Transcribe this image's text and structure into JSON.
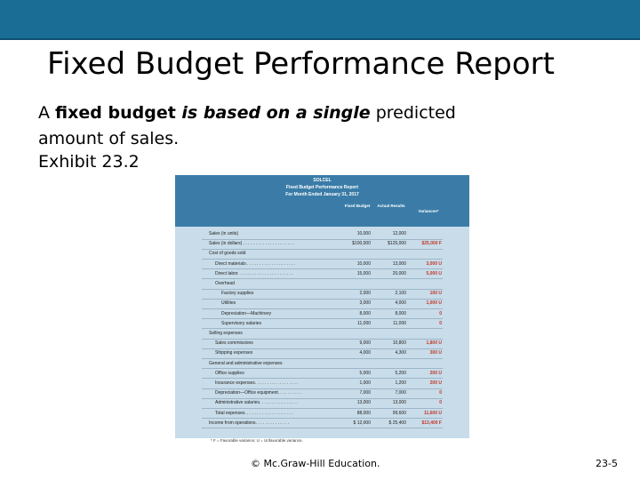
{
  "slide": {
    "title": "Fixed Budget Performance Report",
    "line1_pre": "A ",
    "line1_bold": "fixed budget",
    "line1_italic": " is based on a single",
    "line1_post": " predicted",
    "line2": "amount of sales.",
    "exhibit": "Exhibit 23.2",
    "copyright": "© Mc.Graw-Hill Education.",
    "page_number": "23-5"
  },
  "report": {
    "company": "SOLCEL",
    "title": "Fixed Budget Performance Report",
    "period": "For Month Ended January 31, 2017",
    "col_fixed": "Fixed Budget",
    "col_actual": "Actual Results",
    "col_variances": "Variances*",
    "rows": [
      {
        "label": "Sales (in units)",
        "indent": 0,
        "fixed": "10,000",
        "actual": "12,000",
        "variance": ""
      },
      {
        "label": "Sales (in dollars) . . . . . . . . . . . . . . . . . . . . .",
        "indent": 0,
        "fixed": "$100,000",
        "actual": "$125,000",
        "variance": "$25,000 F"
      },
      {
        "label": "Cost of goods sold",
        "indent": 0,
        "fixed": "",
        "actual": "",
        "variance": ""
      },
      {
        "label": "Direct materials . . . . . . . . . . . . . . . . . . . .",
        "indent": 1,
        "fixed": "10,000",
        "actual": "13,000",
        "variance": "3,000 U"
      },
      {
        "label": "Direct labor. . . . . . . . . . . . . . . . . . . . . . .",
        "indent": 1,
        "fixed": "15,000",
        "actual": "20,000",
        "variance": "5,000 U"
      },
      {
        "label": "Overhead",
        "indent": 1,
        "fixed": "",
        "actual": "",
        "variance": ""
      },
      {
        "label": "Factory supplies",
        "indent": 2,
        "fixed": "2,000",
        "actual": "2,100",
        "variance": "100 U"
      },
      {
        "label": "Utilities",
        "indent": 2,
        "fixed": "3,000",
        "actual": "4,000",
        "variance": "1,000 U"
      },
      {
        "label": "Depreciation—Machinery",
        "indent": 2,
        "fixed": "8,000",
        "actual": "8,000",
        "variance": "0"
      },
      {
        "label": "Supervisory salaries",
        "indent": 2,
        "fixed": "11,000",
        "actual": "11,000",
        "variance": "0"
      },
      {
        "label": "Selling expenses",
        "indent": 0,
        "fixed": "",
        "actual": "",
        "variance": ""
      },
      {
        "label": "Sales commissions",
        "indent": 1,
        "fixed": "9,000",
        "actual": "10,800",
        "variance": "1,800 U"
      },
      {
        "label": "Shipping expenses",
        "indent": 1,
        "fixed": "4,000",
        "actual": "4,300",
        "variance": "300 U"
      },
      {
        "label": "General and administrative expenses",
        "indent": 0,
        "fixed": "",
        "actual": "",
        "variance": ""
      },
      {
        "label": "Office supplies",
        "indent": 1,
        "fixed": "5,000",
        "actual": "5,200",
        "variance": "200 U"
      },
      {
        "label": "Insurance expenses. . . . . . . . . . . . . . . . . .",
        "indent": 1,
        "fixed": "1,000",
        "actual": "1,200",
        "variance": "200 U"
      },
      {
        "label": "Depreciation—Office equipment. . . . . . . . . .",
        "indent": 1,
        "fixed": "7,000",
        "actual": "7,000",
        "variance": "0"
      },
      {
        "label": "Administrative salaries. . . . . . . . . . . . . . . .",
        "indent": 1,
        "fixed": "13,000",
        "actual": "13,000",
        "variance": "0"
      },
      {
        "label": "Total expenses. . . . . . . . . . . . . . . . . . . .",
        "indent": 1,
        "fixed": "88,000",
        "actual": "99,600",
        "variance": "11,600 U"
      },
      {
        "label": "Income from operations. . . . . . . . . . . . . .",
        "indent": 0,
        "fixed": "$ 12,000",
        "actual": "$ 25,400",
        "variance": "$13,400 F"
      }
    ],
    "footnote": "* F = Favorable variance; U = Unfavorable variance."
  }
}
